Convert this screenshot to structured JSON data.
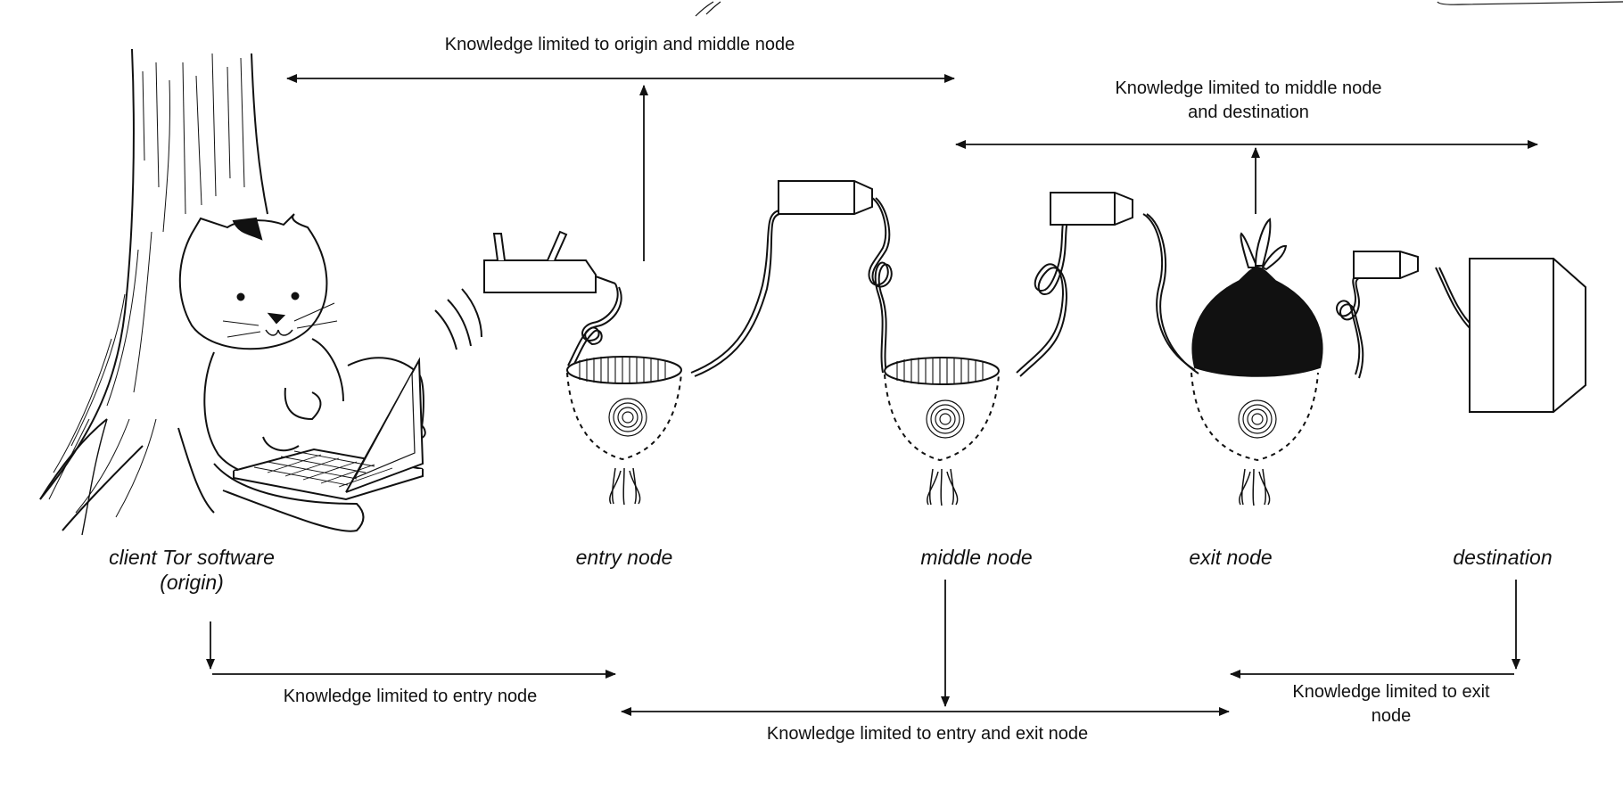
{
  "nodes": {
    "origin": {
      "line1": "client Tor software",
      "line2": "(origin)"
    },
    "entry": "entry node",
    "middle": "middle node",
    "exit": "exit node",
    "destination": "destination"
  },
  "knowledge": {
    "origin_middle": "Knowledge limited to origin and middle node",
    "middle_destination": {
      "line1": "Knowledge limited to middle node",
      "line2": "and destination"
    },
    "entry_only": "Knowledge limited to entry node",
    "entry_exit": "Knowledge limited to entry and exit node",
    "exit_only": {
      "line1": "Knowledge limited to exit",
      "line2": "node"
    }
  },
  "colors": {
    "ink": "#111111",
    "background": "#ffffff"
  }
}
